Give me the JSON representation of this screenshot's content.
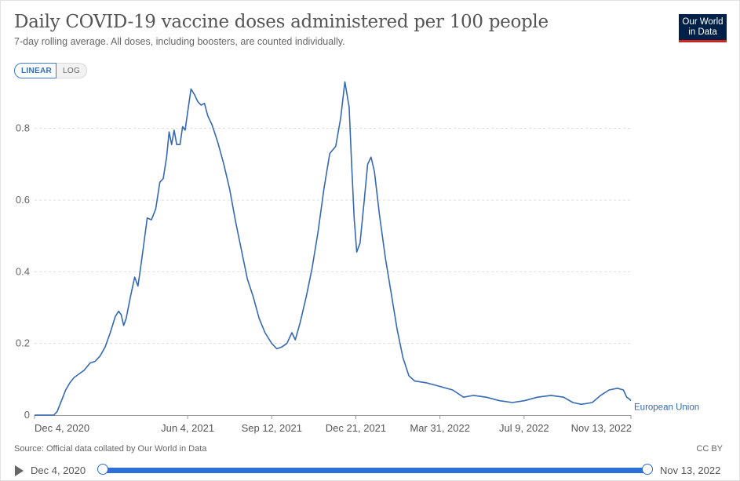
{
  "header": {
    "title": "Daily COVID-19 vaccine doses administered per 100 people",
    "subtitle": "7-day rolling average. All doses, including boosters, are counted individually.",
    "logo_line1": "Our World",
    "logo_line2": "in Data"
  },
  "scale_toggle": {
    "linear_label": "LINEAR",
    "log_label": "LOG",
    "selected": "LINEAR"
  },
  "footer": {
    "source": "Source: Official data collated by Our World in Data",
    "license": "CC BY"
  },
  "timeline": {
    "start_label": "Dec 4, 2020",
    "end_label": "Nov 13, 2022"
  },
  "colors": {
    "series": "#3569b3",
    "grid": "#dddddd",
    "accent": "#2d6fd4",
    "logo_bg": "#002147",
    "logo_bar": "#ce261e"
  },
  "chart_data": {
    "type": "line",
    "title": "Daily COVID-19 vaccine doses administered per 100 people",
    "subtitle": "7-day rolling average. All doses, including boosters, are counted individually.",
    "xlabel": "",
    "ylabel": "",
    "xlim": [
      "2020-12-04",
      "2022-11-13"
    ],
    "ylim": [
      0,
      0.9
    ],
    "y_ticks": [
      0,
      0.2,
      0.4,
      0.6,
      0.8
    ],
    "y_tick_labels": [
      "0",
      "0.2",
      "0.4",
      "0.6",
      "0.8"
    ],
    "x_ticks": [
      "2020-12-04",
      "2021-06-04",
      "2021-09-12",
      "2021-12-21",
      "2022-03-31",
      "2022-07-09",
      "2022-11-13"
    ],
    "x_tick_labels": [
      "Dec 4, 2020",
      "Jun 4, 2021",
      "Sep 12, 2021",
      "Dec 21, 2021",
      "Mar 31, 2022",
      "Jul 9, 2022",
      "Nov 13, 2022"
    ],
    "grid": "horizontal-dashed",
    "legend": "inline-right",
    "series": [
      {
        "name": "European Union",
        "color": "#3569b3",
        "points": [
          [
            "2020-12-04",
            0
          ],
          [
            "2020-12-27",
            0
          ],
          [
            "2020-12-31",
            0.01
          ],
          [
            "2021-01-05",
            0.04
          ],
          [
            "2021-01-10",
            0.07
          ],
          [
            "2021-01-15",
            0.09
          ],
          [
            "2021-01-20",
            0.105
          ],
          [
            "2021-01-26",
            0.115
          ],
          [
            "2021-02-01",
            0.125
          ],
          [
            "2021-02-08",
            0.145
          ],
          [
            "2021-02-14",
            0.15
          ],
          [
            "2021-02-20",
            0.165
          ],
          [
            "2021-02-26",
            0.19
          ],
          [
            "2021-03-04",
            0.23
          ],
          [
            "2021-03-10",
            0.275
          ],
          [
            "2021-03-14",
            0.29
          ],
          [
            "2021-03-17",
            0.28
          ],
          [
            "2021-03-20",
            0.25
          ],
          [
            "2021-03-23",
            0.27
          ],
          [
            "2021-03-28",
            0.33
          ],
          [
            "2021-04-02",
            0.385
          ],
          [
            "2021-04-06",
            0.36
          ],
          [
            "2021-04-09",
            0.41
          ],
          [
            "2021-04-13",
            0.48
          ],
          [
            "2021-04-17",
            0.55
          ],
          [
            "2021-04-22",
            0.545
          ],
          [
            "2021-04-27",
            0.575
          ],
          [
            "2021-05-02",
            0.65
          ],
          [
            "2021-05-06",
            0.66
          ],
          [
            "2021-05-10",
            0.72
          ],
          [
            "2021-05-13",
            0.79
          ],
          [
            "2021-05-16",
            0.755
          ],
          [
            "2021-05-19",
            0.795
          ],
          [
            "2021-05-22",
            0.755
          ],
          [
            "2021-05-26",
            0.755
          ],
          [
            "2021-05-29",
            0.805
          ],
          [
            "2021-06-01",
            0.795
          ],
          [
            "2021-06-04",
            0.845
          ],
          [
            "2021-06-08",
            0.91
          ],
          [
            "2021-06-12",
            0.895
          ],
          [
            "2021-06-16",
            0.875
          ],
          [
            "2021-06-20",
            0.865
          ],
          [
            "2021-06-24",
            0.87
          ],
          [
            "2021-06-28",
            0.835
          ],
          [
            "2021-07-03",
            0.81
          ],
          [
            "2021-07-10",
            0.76
          ],
          [
            "2021-07-17",
            0.7
          ],
          [
            "2021-07-24",
            0.63
          ],
          [
            "2021-07-31",
            0.54
          ],
          [
            "2021-08-07",
            0.46
          ],
          [
            "2021-08-14",
            0.38
          ],
          [
            "2021-08-21",
            0.33
          ],
          [
            "2021-08-28",
            0.27
          ],
          [
            "2021-09-04",
            0.23
          ],
          [
            "2021-09-12",
            0.2
          ],
          [
            "2021-09-18",
            0.185
          ],
          [
            "2021-09-24",
            0.19
          ],
          [
            "2021-09-30",
            0.2
          ],
          [
            "2021-10-06",
            0.23
          ],
          [
            "2021-10-10",
            0.21
          ],
          [
            "2021-10-16",
            0.26
          ],
          [
            "2021-10-23",
            0.33
          ],
          [
            "2021-10-30",
            0.41
          ],
          [
            "2021-11-06",
            0.51
          ],
          [
            "2021-11-13",
            0.63
          ],
          [
            "2021-11-20",
            0.73
          ],
          [
            "2021-11-27",
            0.75
          ],
          [
            "2021-12-03",
            0.83
          ],
          [
            "2021-12-08",
            0.93
          ],
          [
            "2021-12-13",
            0.86
          ],
          [
            "2021-12-16",
            0.7
          ],
          [
            "2021-12-19",
            0.55
          ],
          [
            "2021-12-22",
            0.455
          ],
          [
            "2021-12-26",
            0.48
          ],
          [
            "2021-12-31",
            0.6
          ],
          [
            "2022-01-04",
            0.7
          ],
          [
            "2022-01-08",
            0.72
          ],
          [
            "2022-01-12",
            0.68
          ],
          [
            "2022-01-18",
            0.56
          ],
          [
            "2022-01-25",
            0.44
          ],
          [
            "2022-02-01",
            0.34
          ],
          [
            "2022-02-08",
            0.24
          ],
          [
            "2022-02-15",
            0.16
          ],
          [
            "2022-02-22",
            0.11
          ],
          [
            "2022-03-01",
            0.095
          ],
          [
            "2022-03-15",
            0.09
          ],
          [
            "2022-03-31",
            0.08
          ],
          [
            "2022-04-15",
            0.07
          ],
          [
            "2022-04-28",
            0.05
          ],
          [
            "2022-05-10",
            0.055
          ],
          [
            "2022-05-25",
            0.05
          ],
          [
            "2022-06-10",
            0.04
          ],
          [
            "2022-06-25",
            0.035
          ],
          [
            "2022-07-09",
            0.04
          ],
          [
            "2022-07-25",
            0.05
          ],
          [
            "2022-08-10",
            0.055
          ],
          [
            "2022-08-25",
            0.05
          ],
          [
            "2022-09-05",
            0.035
          ],
          [
            "2022-09-15",
            0.03
          ],
          [
            "2022-09-28",
            0.035
          ],
          [
            "2022-10-08",
            0.055
          ],
          [
            "2022-10-18",
            0.07
          ],
          [
            "2022-10-28",
            0.075
          ],
          [
            "2022-11-04",
            0.07
          ],
          [
            "2022-11-08",
            0.05
          ],
          [
            "2022-11-11",
            0.045
          ],
          [
            "2022-11-13",
            0.04
          ]
        ]
      }
    ]
  }
}
